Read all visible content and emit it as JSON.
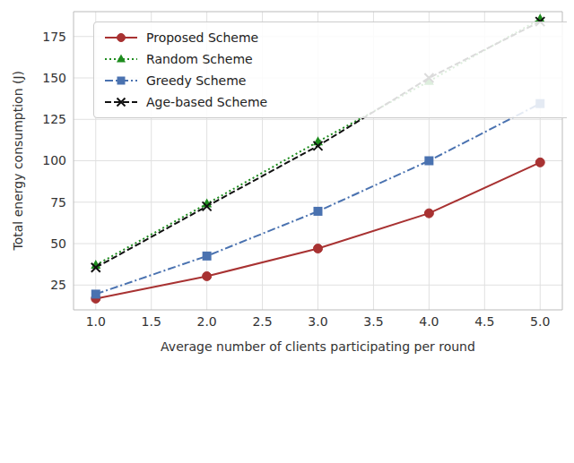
{
  "chart_data": {
    "type": "line",
    "x_label": "Average number of clients participating per round",
    "y_label": "Total energy consumption (J)",
    "x": [
      1,
      2,
      3,
      4,
      5
    ],
    "xlim": [
      0.8,
      5.2
    ],
    "xticks": [
      {
        "value": 1,
        "label": "1.0"
      },
      {
        "value": 1.5,
        "label": "1.5"
      },
      {
        "value": 2,
        "label": "2.0"
      },
      {
        "value": 2.5,
        "label": "2.5"
      },
      {
        "value": 3,
        "label": "3.0"
      },
      {
        "value": 3.5,
        "label": "3.5"
      },
      {
        "value": 4,
        "label": "4.0"
      },
      {
        "value": 4.5,
        "label": "4.5"
      },
      {
        "value": 5,
        "label": "5.0"
      }
    ],
    "ylim": [
      10,
      190
    ],
    "yticks": [
      25,
      50,
      75,
      100,
      125,
      150,
      175
    ],
    "grid": true,
    "legend": "upper left",
    "series": [
      {
        "name": "Proposed Scheme",
        "color": "#a83232",
        "marker": "circle",
        "line_style": "solid",
        "values": [
          16.8,
          30.3,
          47,
          68.3,
          99
        ]
      },
      {
        "name": "Random Scheme",
        "color": "#1e8c1e",
        "marker": "triangle",
        "line_style": "dotted",
        "values": [
          37,
          74,
          111.5,
          148,
          185.5
        ]
      },
      {
        "name": "Greedy Scheme",
        "color": "#4a72b0",
        "marker": "square",
        "line_style": "dashdot",
        "values": [
          19.5,
          42.5,
          69.5,
          100,
          134.5
        ]
      },
      {
        "name": "Age-based Scheme",
        "color": "#111111",
        "marker": "x",
        "line_style": "dashed",
        "values": [
          35.5,
          72.5,
          109,
          150,
          184
        ]
      }
    ]
  }
}
